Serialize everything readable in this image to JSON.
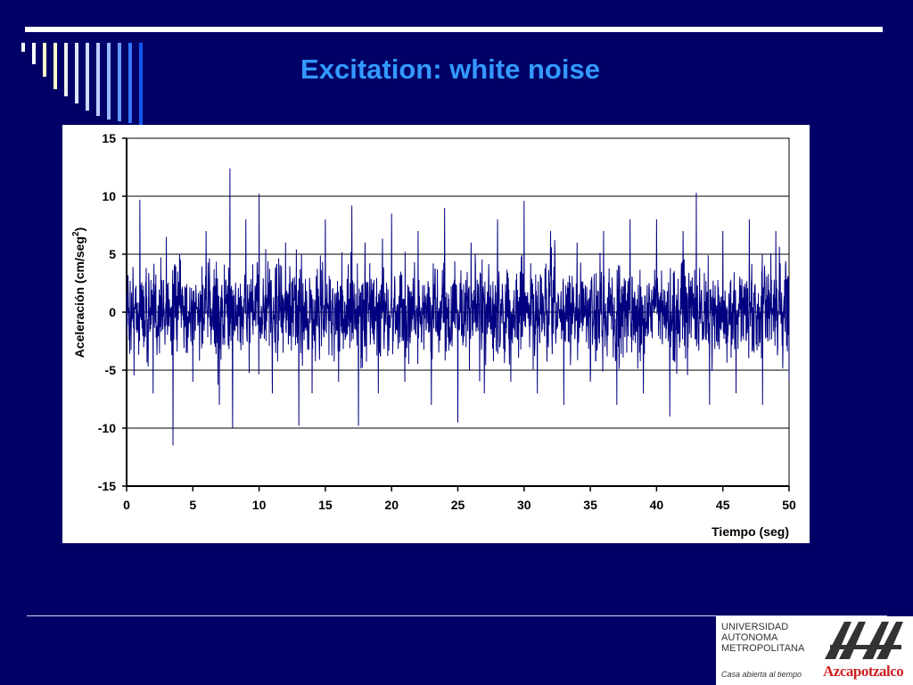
{
  "slide": {
    "title": "Excitation: white noise",
    "colors": {
      "background": "#000066",
      "title": "#3399ff",
      "series": "#000080"
    }
  },
  "logo": {
    "line1": "UNIVERSIDAD",
    "line2": "AUTONOMA",
    "line3": "METROPOLITANA",
    "motto": "Casa abierta al tiempo",
    "campus": "Azcapotzalco"
  },
  "chart_data": {
    "type": "line",
    "title": "",
    "xlabel": "Tiempo (seg)",
    "ylabel": "Aceleración (cm/seg",
    "ylabel_sup": "2",
    "ylabel_close": ")",
    "xlim": [
      0,
      50
    ],
    "ylim": [
      -15,
      15
    ],
    "xticks": [
      "0",
      "5",
      "10",
      "15",
      "20",
      "25",
      "30",
      "35",
      "40",
      "45",
      "50"
    ],
    "yticks": [
      "15",
      "10",
      "5",
      "0",
      "-5",
      "-10",
      "-15"
    ],
    "grid": "horizontal",
    "legend": "none",
    "series": [
      {
        "x": [
          0,
          1,
          2,
          3,
          3.5,
          4,
          5,
          6,
          7,
          7.8,
          8,
          9,
          10,
          11,
          12,
          13,
          13.2,
          14,
          15,
          16,
          17,
          17.5,
          18,
          19,
          20,
          21,
          22,
          23,
          24,
          25,
          26,
          27,
          28,
          29,
          30,
          31,
          32,
          33,
          34,
          35,
          36,
          37,
          38,
          39,
          40,
          41,
          42,
          43,
          44,
          45,
          46,
          47,
          48,
          49,
          50
        ],
        "y": [
          -2,
          9.7,
          -7,
          6.5,
          -11.5,
          5,
          -6,
          7,
          -8,
          12.4,
          -10,
          8,
          10.2,
          -7,
          6,
          -9.8,
          5,
          -7,
          8,
          -6,
          9.2,
          -9.8,
          6,
          -7,
          8.5,
          -6,
          7,
          -8,
          9,
          -9.5,
          6,
          -7,
          8,
          -6,
          9.6,
          -7,
          7,
          -8,
          6,
          -6,
          7,
          -8,
          8,
          -7,
          8,
          -9,
          7,
          10.3,
          -8,
          7,
          -7,
          8,
          -8,
          7,
          -6
        ]
      }
    ]
  }
}
